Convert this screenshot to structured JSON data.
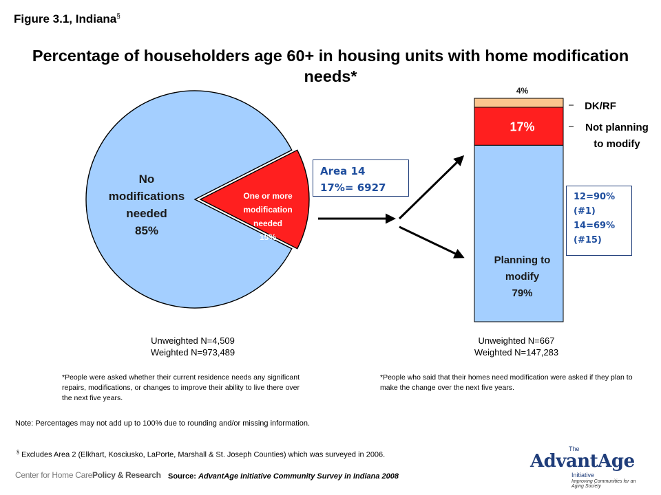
{
  "header": {
    "figure_label": "Figure 3.1, Indiana",
    "figure_mark": "§",
    "title": "Percentage of householders age 60+ in housing units with home modification needs*"
  },
  "chart_data": [
    {
      "type": "pie",
      "slices": [
        {
          "label_lines": [
            "No",
            "modifications",
            "needed",
            "85%"
          ],
          "value": 85,
          "color": "#a4cfff"
        },
        {
          "label_lines": [
            "One or more",
            "modification",
            "needed",
            "15%"
          ],
          "value": 15,
          "color": "#ff1f1f"
        }
      ],
      "n_lines": [
        "Unweighted N=4,509",
        "Weighted N=973,489"
      ]
    },
    {
      "type": "bar",
      "stacked": true,
      "segments": [
        {
          "label_lines": [
            "Planning to",
            "modify",
            "79%"
          ],
          "value": 79,
          "color": "#a4cfff"
        },
        {
          "label": "17%",
          "side_label_lines": [
            "Not planning",
            "to modify"
          ],
          "value": 17,
          "color": "#ff1f1f"
        },
        {
          "label": "4%",
          "side_label_lines": [
            "DK/RF"
          ],
          "value": 4,
          "color": "#fbc48e"
        }
      ],
      "n_lines": [
        "Unweighted N=667",
        "Weighted N=147,283"
      ]
    }
  ],
  "callouts": {
    "area": [
      "Area 14",
      "17%= 6927"
    ],
    "ranks": [
      "12=90%",
      "(#1)",
      "14=69%",
      "(#15)"
    ]
  },
  "footnotes": {
    "pie_note": "*People were asked whether their current residence needs any significant repairs, modifications, or changes to improve their ability to live there over the next five years.",
    "bar_note": "*People who said that their homes need modification were asked if they plan to make the change over the next five years.",
    "rounding_note": "Note: Percentages may not add up to 100% due to rounding and/or missing information.",
    "excludes_mark": "§",
    "excludes": "Excludes Area 2 (Elkhart, Kosciusko, LaPorte, Marshall & St. Joseph Counties) which was surveyed in 2006."
  },
  "footer": {
    "source_label": "Source:",
    "source_text": "AdvantAge Initiative Community Survey in Indiana 2008",
    "left_logo": [
      "Center for Home Care",
      "Policy & Research"
    ],
    "right_logo": {
      "small": "The",
      "name": "AdvantAge",
      "sub": "Initiative",
      "tagline": "Improving Communities for an Aging Society"
    }
  },
  "colors": {
    "accent_blue": "#a4cfff",
    "accent_red": "#ff1f1f",
    "accent_peach": "#fbc48e",
    "callout_text": "#1f4e9e"
  }
}
